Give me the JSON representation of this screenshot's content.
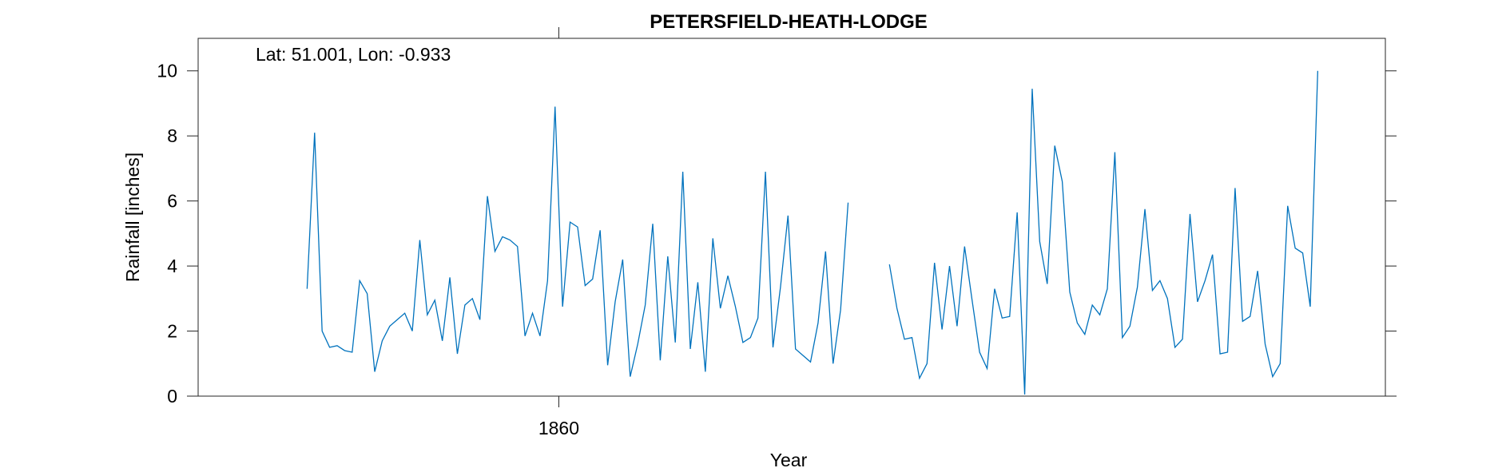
{
  "chart_data": {
    "type": "line",
    "title": "PETERSFIELD-HEATH-LODGE",
    "annotation": "Lat: 51.001, Lon: -0.933",
    "xlabel": "Year",
    "ylabel": "Rainfall [inches]",
    "xlim": [
      1836,
      1915
    ],
    "ylim": [
      0,
      11
    ],
    "x_ticks": [
      1860
    ],
    "x_tick_labels": [
      "1860"
    ],
    "y_ticks": [
      0,
      2,
      4,
      6,
      8,
      10
    ],
    "y_tick_labels": [
      "0",
      "2",
      "4",
      "6",
      "8",
      "10"
    ],
    "grid": false,
    "series": [
      {
        "color": "#0072BD",
        "segments": [
          [
            3.3,
            8.1,
            2.0,
            1.5,
            1.55,
            1.4,
            1.35,
            3.55,
            3.15,
            0.75,
            1.7,
            2.15,
            2.35,
            2.55,
            2.0,
            4.8,
            2.5,
            2.95,
            1.7,
            3.65,
            1.3,
            2.8,
            3.0,
            2.35,
            6.15,
            4.45,
            4.9,
            4.8,
            4.6,
            1.85,
            2.55,
            1.85,
            3.55,
            8.9,
            2.75,
            5.35,
            5.2,
            3.4,
            3.6,
            5.1,
            0.95,
            2.9,
            4.2,
            0.6,
            1.6,
            2.8,
            5.3,
            1.1,
            4.3,
            1.65,
            6.9,
            1.45,
            3.5,
            0.75,
            4.85,
            2.7,
            3.7,
            2.75,
            1.65,
            1.8,
            2.4,
            6.9,
            1.5,
            3.35,
            5.55,
            1.45,
            1.25,
            1.05,
            2.25,
            4.45,
            1.0,
            2.65,
            5.95
          ],
          [
            4.05,
            2.7,
            1.75,
            1.8,
            0.55,
            1.0,
            4.1,
            2.05,
            4.0,
            2.15,
            4.6,
            2.95,
            1.35,
            0.85,
            3.3,
            2.4,
            2.45,
            5.65,
            0.05,
            9.45,
            4.75,
            3.45,
            7.7,
            6.6,
            3.2,
            2.25,
            1.9,
            2.8,
            2.5,
            3.3,
            7.5,
            1.8,
            2.15,
            3.35,
            5.75,
            3.25,
            3.55,
            3.0,
            1.5,
            1.75,
            5.6,
            2.9,
            3.55,
            4.35,
            1.3,
            1.35,
            6.4,
            2.3,
            2.45,
            3.85,
            1.6,
            0.6,
            1.0,
            5.85,
            4.55,
            4.4,
            2.75,
            10.0
          ]
        ],
        "segment_x_start": [
          1843.25,
          1882.0
        ],
        "x_step": 0.5
      }
    ]
  }
}
